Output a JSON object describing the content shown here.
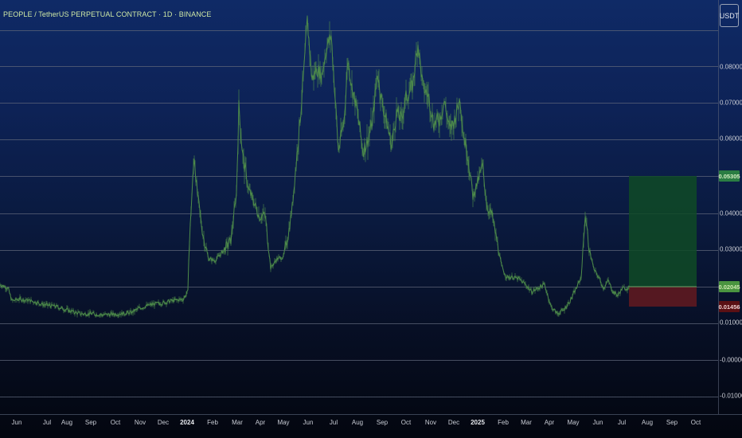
{
  "chart": {
    "title": "PEOPLE / TetherUS PERPETUAL CONTRACT · 1D · BINANCE",
    "currency": "USDT"
  },
  "colors": {
    "grid": "#5c6478",
    "series": "#4e8c4a",
    "target_zone": "#0f4a26",
    "stop_zone": "#5e1a20",
    "entry_line": "#6aa56a"
  },
  "y_axis": {
    "labels": [
      "0.08000",
      "0.07000",
      "0.06000",
      "0.04000",
      "0.03000",
      "0.01000",
      "-0.00000",
      "-0.01000"
    ]
  },
  "x_axis": {
    "labels": [
      {
        "text": "Jun",
        "year": false
      },
      {
        "text": "Jul",
        "year": false
      },
      {
        "text": "Aug",
        "year": false
      },
      {
        "text": "Sep",
        "year": false
      },
      {
        "text": "Oct",
        "year": false
      },
      {
        "text": "Nov",
        "year": false
      },
      {
        "text": "Dec",
        "year": false
      },
      {
        "text": "2024",
        "year": true
      },
      {
        "text": "Feb",
        "year": false
      },
      {
        "text": "Mar",
        "year": false
      },
      {
        "text": "Apr",
        "year": false
      },
      {
        "text": "May",
        "year": false
      },
      {
        "text": "Jun",
        "year": false
      },
      {
        "text": "Jul",
        "year": false
      },
      {
        "text": "Aug",
        "year": false
      },
      {
        "text": "Sep",
        "year": false
      },
      {
        "text": "Oct",
        "year": false
      },
      {
        "text": "Nov",
        "year": false
      },
      {
        "text": "Dec",
        "year": false
      },
      {
        "text": "2025",
        "year": true
      },
      {
        "text": "Feb",
        "year": false
      },
      {
        "text": "Mar",
        "year": false
      },
      {
        "text": "Apr",
        "year": false
      },
      {
        "text": "May",
        "year": false
      },
      {
        "text": "Jun",
        "year": false
      },
      {
        "text": "Jul",
        "year": false
      },
      {
        "text": "Aug",
        "year": false
      },
      {
        "text": "Sep",
        "year": false
      },
      {
        "text": "Oct",
        "year": false
      }
    ]
  },
  "price_tags": {
    "target": "0.05305",
    "entry": "0.02045",
    "stop": "0.01456"
  },
  "chart_data": {
    "type": "line",
    "series": [
      {
        "values": [
          [
            -10,
            0.019
          ],
          [
            0,
            0.0205
          ],
          [
            10,
            0.0195
          ],
          [
            15,
            0.016
          ],
          [
            25,
            0.0165
          ],
          [
            40,
            0.016
          ],
          [
            55,
            0.015
          ],
          [
            70,
            0.0145
          ],
          [
            85,
            0.0135
          ],
          [
            100,
            0.0125
          ],
          [
            115,
            0.0125
          ],
          [
            130,
            0.0122
          ],
          [
            150,
            0.0125
          ],
          [
            165,
            0.0128
          ],
          [
            175,
            0.014
          ],
          [
            190,
            0.015
          ],
          [
            205,
            0.0155
          ],
          [
            215,
            0.016
          ],
          [
            230,
            0.0165
          ],
          [
            236,
            0.0185
          ],
          [
            237,
            0.0272
          ],
          [
            240,
            0.041
          ],
          [
            244,
            0.056
          ],
          [
            248,
            0.045
          ],
          [
            255,
            0.034
          ],
          [
            262,
            0.0275
          ],
          [
            270,
            0.027
          ],
          [
            280,
            0.0295
          ],
          [
            290,
            0.0325
          ],
          [
            297,
            0.0455
          ],
          [
            300,
            0.069
          ],
          [
            305,
            0.0555
          ],
          [
            312,
            0.0465
          ],
          [
            318,
            0.0435
          ],
          [
            326,
            0.039
          ],
          [
            333,
            0.0395
          ],
          [
            340,
            0.025
          ],
          [
            348,
            0.0275
          ],
          [
            356,
            0.028
          ],
          [
            362,
            0.034
          ],
          [
            367,
            0.0415
          ],
          [
            373,
            0.056
          ],
          [
            378,
            0.0685
          ],
          [
            382,
            0.0795
          ],
          [
            386,
            0.0925
          ],
          [
            392,
            0.0765
          ],
          [
            398,
            0.0795
          ],
          [
            404,
            0.0775
          ],
          [
            410,
            0.085
          ],
          [
            416,
            0.0885
          ],
          [
            420,
            0.075
          ],
          [
            425,
            0.057
          ],
          [
            432,
            0.065
          ],
          [
            437,
            0.082
          ],
          [
            442,
            0.0745
          ],
          [
            448,
            0.0685
          ],
          [
            456,
            0.057
          ],
          [
            462,
            0.06
          ],
          [
            468,
            0.065
          ],
          [
            474,
            0.0785
          ],
          [
            480,
            0.07
          ],
          [
            486,
            0.0645
          ],
          [
            492,
            0.0585
          ],
          [
            498,
            0.0675
          ],
          [
            504,
            0.0655
          ],
          [
            510,
            0.0715
          ],
          [
            518,
            0.0745
          ],
          [
            525,
            0.0865
          ],
          [
            531,
            0.0745
          ],
          [
            538,
            0.072
          ],
          [
            545,
            0.0645
          ],
          [
            552,
            0.0655
          ],
          [
            558,
            0.0705
          ],
          [
            565,
            0.0625
          ],
          [
            571,
            0.0655
          ],
          [
            578,
            0.0715
          ],
          [
            582,
            0.0615
          ],
          [
            588,
            0.0555
          ],
          [
            594,
            0.0445
          ],
          [
            600,
            0.0485
          ],
          [
            606,
            0.0525
          ],
          [
            612,
            0.0415
          ],
          [
            618,
            0.0395
          ],
          [
            624,
            0.0325
          ],
          [
            630,
            0.0255
          ],
          [
            636,
            0.0225
          ],
          [
            644,
            0.0225
          ],
          [
            652,
            0.022
          ],
          [
            660,
            0.0205
          ],
          [
            668,
            0.0185
          ],
          [
            676,
            0.0195
          ],
          [
            684,
            0.0205
          ],
          [
            692,
            0.0145
          ],
          [
            700,
            0.0125
          ],
          [
            708,
            0.0135
          ],
          [
            716,
            0.016
          ],
          [
            724,
            0.0195
          ],
          [
            730,
            0.0225
          ],
          [
            735,
            0.0395
          ],
          [
            740,
            0.0305
          ],
          [
            746,
            0.0245
          ],
          [
            752,
            0.0225
          ],
          [
            758,
            0.0195
          ],
          [
            764,
            0.0215
          ],
          [
            770,
            0.0185
          ],
          [
            776,
            0.0175
          ],
          [
            782,
            0.0195
          ],
          [
            790,
            0.0195
          ]
        ]
      }
    ],
    "x_units": "pixel_index",
    "ylim": [
      -0.01,
      0.095
    ]
  }
}
